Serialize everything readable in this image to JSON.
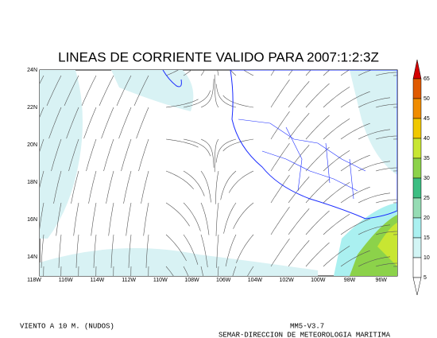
{
  "title": "LINEAS DE CORRIENTE VALIDO PARA 2007:1:2:3Z",
  "lat_labels": [
    "24N",
    "22N",
    "20N",
    "18N",
    "16N",
    "14N"
  ],
  "lon_labels": [
    "118W",
    "116W",
    "114W",
    "112W",
    "110W",
    "108W",
    "106W",
    "104W",
    "102W",
    "100W",
    "98W",
    "96W"
  ],
  "colorbar": {
    "levels": [
      65,
      50,
      45,
      40,
      35,
      30,
      25,
      20,
      15,
      10,
      5
    ],
    "colors": [
      "#e05a00",
      "#f08c00",
      "#f0c800",
      "#c8e632",
      "#8cd24a",
      "#3cbe82",
      "#96dcb4",
      "#aaf0f0",
      "#d2f5f5",
      "#ffffff"
    ],
    "over_color": "#d40000",
    "under_color": "#ffffff"
  },
  "footer": {
    "left": "VIENTO A 10 M. (NUDOS)",
    "model": "MM5-V3.7",
    "credit": "SEMAR-DIRECCION DE METEOROLOGIA MARITIMA"
  }
}
